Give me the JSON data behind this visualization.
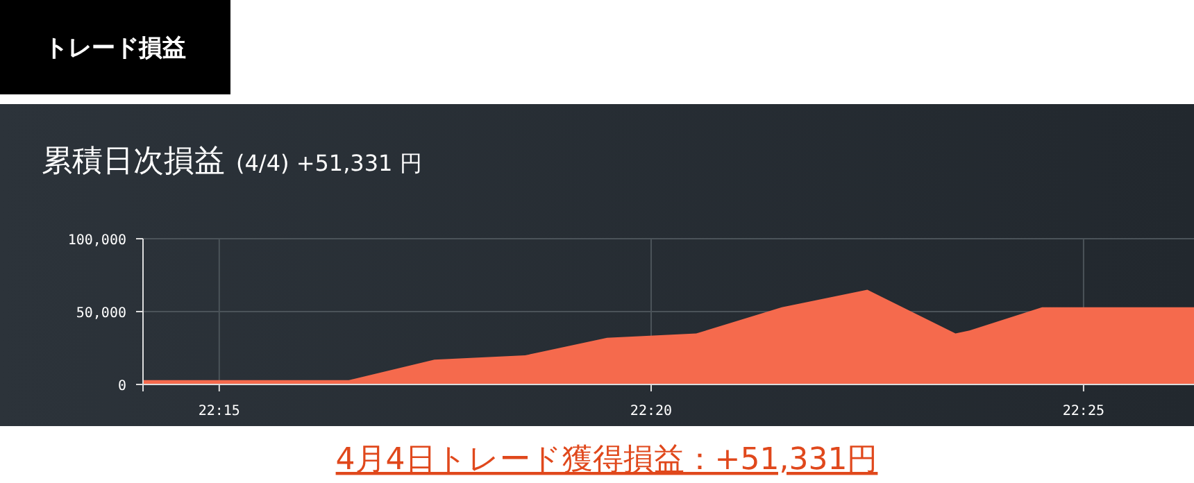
{
  "chart_data": {
    "type": "area",
    "title": "累積日次損益",
    "subtitle": "(4/4) +51,331 円",
    "annotations": [
      "トレード損益",
      "4月4日トレード獲得損益：+51,331円"
    ],
    "x": [
      22.2353,
      22.275,
      22.2915,
      22.309,
      22.3248,
      22.342,
      22.3585,
      22.375,
      22.392,
      22.3947,
      22.4087,
      22.438
    ],
    "series": [
      {
        "color": "#f56a4d",
        "values": [
          3000,
          3000,
          17000,
          20000,
          32000,
          35000,
          53000,
          65000,
          35000,
          37000,
          53000,
          53000
        ]
      }
    ],
    "xlim": [
      22.2353,
      22.438
    ],
    "xticks": [
      {
        "value": 22.25,
        "label": "22:15"
      },
      {
        "value": 22.3333,
        "label": "22:20"
      },
      {
        "value": 22.4167,
        "label": "22:25"
      }
    ],
    "ylim": [
      0,
      100000
    ],
    "yticks": [
      {
        "value": 0,
        "label": "0"
      },
      {
        "value": 50000,
        "label": "50,000"
      },
      {
        "value": 100000,
        "label": "100,000"
      }
    ],
    "grid": true
  }
}
